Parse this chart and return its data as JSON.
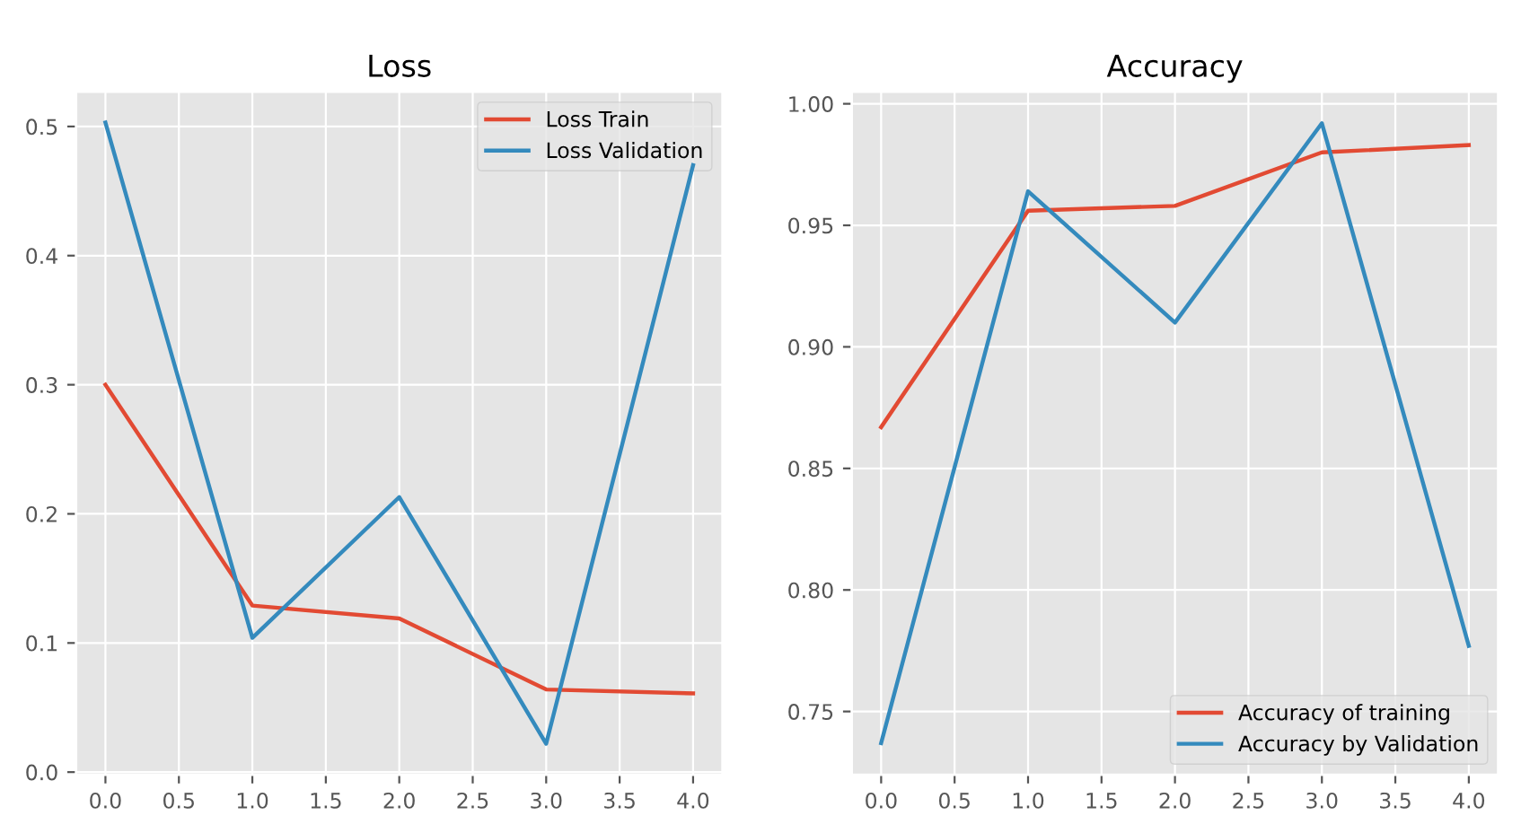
{
  "chart_data": [
    {
      "type": "line",
      "title": "Loss",
      "x": [
        0,
        1,
        2,
        3,
        4
      ],
      "series": [
        {
          "name": "Loss Train",
          "color": "#e24a33",
          "values": [
            0.3,
            0.129,
            0.119,
            0.064,
            0.061
          ]
        },
        {
          "name": "Loss Validation",
          "color": "#348abd",
          "values": [
            0.503,
            0.104,
            0.213,
            0.022,
            0.47
          ]
        }
      ],
      "xlim": [
        -0.2,
        4.2
      ],
      "xticks": [
        {
          "value": 0,
          "label": "0.0"
        },
        {
          "value": 0.5,
          "label": "0.5"
        },
        {
          "value": 1,
          "label": "1.0"
        },
        {
          "value": 1.5,
          "label": "1.5"
        },
        {
          "value": 2,
          "label": "2.0"
        },
        {
          "value": 2.5,
          "label": "2.5"
        },
        {
          "value": 3,
          "label": "3.0"
        },
        {
          "value": 3.5,
          "label": "3.5"
        },
        {
          "value": 4,
          "label": "4.0"
        }
      ],
      "ylim": [
        -0.002,
        0.527
      ],
      "yticks": [
        {
          "value": 0,
          "label": "0.0"
        },
        0.1,
        0.2,
        0.3,
        0.4,
        0.5
      ],
      "grid": true,
      "legend": "top right"
    },
    {
      "type": "line",
      "title": "Accuracy",
      "x": [
        0,
        1,
        2,
        3,
        4
      ],
      "series": [
        {
          "name": "Accuracy of training",
          "color": "#e24a33",
          "values": [
            0.867,
            0.956,
            0.958,
            0.98,
            0.983
          ]
        },
        {
          "name": "Accuracy by Validation",
          "color": "#348abd",
          "values": [
            0.737,
            0.964,
            0.91,
            0.992,
            0.777
          ]
        }
      ],
      "xlim": [
        -0.2,
        4.2
      ],
      "xticks": [
        {
          "value": 0,
          "label": "0.0"
        },
        {
          "value": 0.5,
          "label": "0.5"
        },
        {
          "value": 1,
          "label": "1.0"
        },
        {
          "value": 1.5,
          "label": "1.5"
        },
        {
          "value": 2,
          "label": "2.0"
        },
        {
          "value": 2.5,
          "label": "2.5"
        },
        {
          "value": 3,
          "label": "3.0"
        },
        {
          "value": 3.5,
          "label": "3.5"
        },
        {
          "value": 4,
          "label": "4.0"
        }
      ],
      "ylim": [
        0.724,
        1.005
      ],
      "yticks": [
        {
          "value": 0.75,
          "label": "0.75"
        },
        {
          "value": 0.8,
          "label": "0.80"
        },
        {
          "value": 0.85,
          "label": "0.85"
        },
        {
          "value": 0.9,
          "label": "0.90"
        },
        {
          "value": 0.95,
          "label": "0.95"
        },
        {
          "value": 1.0,
          "label": "1.00"
        }
      ],
      "grid": true,
      "legend": "lower right"
    }
  ]
}
